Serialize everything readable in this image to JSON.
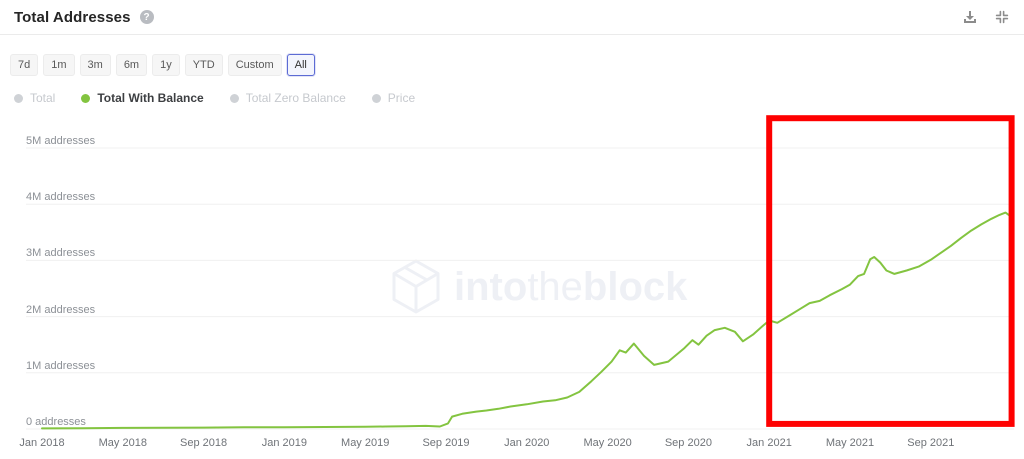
{
  "header": {
    "title": "Total Addresses",
    "help_glyph": "?"
  },
  "toolbar": {
    "ranges": [
      "7d",
      "1m",
      "3m",
      "6m",
      "1y",
      "YTD",
      "Custom",
      "All"
    ],
    "selected": "All"
  },
  "legend": {
    "items": [
      {
        "label": "Total",
        "active": false
      },
      {
        "label": "Total With Balance",
        "active": true
      },
      {
        "label": "Total Zero Balance",
        "active": false
      },
      {
        "label": "Price",
        "active": false
      }
    ]
  },
  "watermark": {
    "into": "into",
    "the": "the",
    "block": "block"
  },
  "colors": {
    "line_green": "#83c440",
    "annotation_red": "#fe0000",
    "gridline": "#f0f0f0",
    "selected_button_border": "#5c6bd4",
    "inactive_legend": "#cfd2d6",
    "icon_gray": "#8c8c8c"
  },
  "chart_data": {
    "type": "line",
    "title": "Total Addresses",
    "x_unit": "months since Jan 2018",
    "grid": true,
    "ylim": [
      0,
      5.6
    ],
    "xlim_months": [
      0,
      48.2
    ],
    "y_ticks": [
      {
        "value": 0,
        "label": "0 addresses"
      },
      {
        "value": 1,
        "label": "1M addresses"
      },
      {
        "value": 2,
        "label": "2M addresses"
      },
      {
        "value": 3,
        "label": "3M addresses"
      },
      {
        "value": 4,
        "label": "4M addresses"
      },
      {
        "value": 5,
        "label": "5M addresses"
      }
    ],
    "x_ticks": [
      {
        "m": 0,
        "label": "Jan 2018"
      },
      {
        "m": 4,
        "label": "May 2018"
      },
      {
        "m": 8,
        "label": "Sep 2018"
      },
      {
        "m": 12,
        "label": "Jan 2019"
      },
      {
        "m": 16,
        "label": "May 2019"
      },
      {
        "m": 20,
        "label": "Sep 2019"
      },
      {
        "m": 24,
        "label": "Jan 2020"
      },
      {
        "m": 28,
        "label": "May 2020"
      },
      {
        "m": 32,
        "label": "Sep 2020"
      },
      {
        "m": 36,
        "label": "Jan 2021"
      },
      {
        "m": 40,
        "label": "May 2021"
      },
      {
        "m": 44,
        "label": "Sep 2021"
      }
    ],
    "series": [
      {
        "name": "Total With Balance",
        "color": "#83c440",
        "unit": "millions of addresses",
        "points": [
          [
            0,
            0.01
          ],
          [
            2,
            0.015
          ],
          [
            4,
            0.02
          ],
          [
            6,
            0.022
          ],
          [
            8,
            0.025
          ],
          [
            10,
            0.03
          ],
          [
            12,
            0.032
          ],
          [
            14,
            0.035
          ],
          [
            16,
            0.04
          ],
          [
            17,
            0.045
          ],
          [
            18,
            0.05
          ],
          [
            19,
            0.055
          ],
          [
            19.7,
            0.045
          ],
          [
            20.1,
            0.1
          ],
          [
            20.3,
            0.22
          ],
          [
            20.8,
            0.27
          ],
          [
            21.5,
            0.31
          ],
          [
            22,
            0.33
          ],
          [
            22.6,
            0.36
          ],
          [
            23.2,
            0.4
          ],
          [
            24,
            0.44
          ],
          [
            24.8,
            0.49
          ],
          [
            25.4,
            0.51
          ],
          [
            26,
            0.56
          ],
          [
            26.6,
            0.66
          ],
          [
            27.2,
            0.85
          ],
          [
            27.7,
            1.02
          ],
          [
            28.2,
            1.2
          ],
          [
            28.6,
            1.4
          ],
          [
            28.9,
            1.36
          ],
          [
            29.3,
            1.52
          ],
          [
            29.8,
            1.3
          ],
          [
            30.3,
            1.14
          ],
          [
            31,
            1.2
          ],
          [
            31.8,
            1.44
          ],
          [
            32.2,
            1.58
          ],
          [
            32.5,
            1.5
          ],
          [
            32.9,
            1.66
          ],
          [
            33.3,
            1.76
          ],
          [
            33.8,
            1.8
          ],
          [
            34.3,
            1.73
          ],
          [
            34.7,
            1.56
          ],
          [
            35.2,
            1.68
          ],
          [
            35.7,
            1.84
          ],
          [
            36,
            1.93
          ],
          [
            36.4,
            1.89
          ],
          [
            37,
            2.02
          ],
          [
            37.5,
            2.13
          ],
          [
            38,
            2.24
          ],
          [
            38.5,
            2.28
          ],
          [
            39,
            2.38
          ],
          [
            39.6,
            2.49
          ],
          [
            40,
            2.57
          ],
          [
            40.4,
            2.72
          ],
          [
            40.7,
            2.76
          ],
          [
            41,
            3.02
          ],
          [
            41.2,
            3.06
          ],
          [
            41.5,
            2.96
          ],
          [
            41.8,
            2.82
          ],
          [
            42.2,
            2.76
          ],
          [
            42.8,
            2.82
          ],
          [
            43.4,
            2.89
          ],
          [
            44,
            3.01
          ],
          [
            44.6,
            3.16
          ],
          [
            45,
            3.26
          ],
          [
            45.5,
            3.4
          ],
          [
            46,
            3.53
          ],
          [
            46.5,
            3.64
          ],
          [
            47,
            3.74
          ],
          [
            47.4,
            3.81
          ],
          [
            47.7,
            3.85
          ],
          [
            48,
            3.77
          ]
        ]
      }
    ],
    "annotation": {
      "type": "highlight-rect",
      "color": "#fe0000",
      "x_from_month": 36,
      "x_to_month": 48,
      "y_from_value": 0.09,
      "y_to_value": 5.53,
      "note": "red box drawn around the Jan 2021 onward segment"
    }
  }
}
